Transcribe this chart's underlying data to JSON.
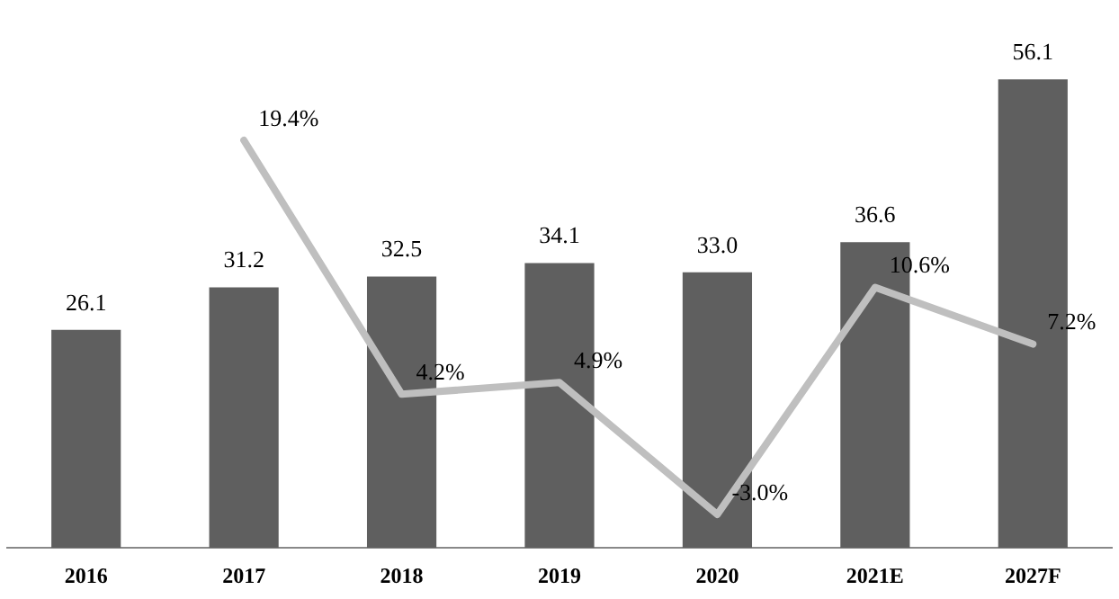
{
  "chart_data": {
    "type": "bar",
    "categories": [
      "2016",
      "2017",
      "2018",
      "2019",
      "2020",
      "2021E",
      "2027F"
    ],
    "grid": false,
    "legend": false,
    "tick_labels": "x",
    "series": [
      {
        "color": "#5f5f5f",
        "values": [
          26.1,
          31.2,
          32.5,
          34.1,
          33.0,
          36.6,
          56.1
        ],
        "value_labels": [
          "26.1",
          "31.2",
          "32.5",
          "34.1",
          "33.0",
          "36.6",
          "56.1"
        ]
      },
      {
        "type": "line",
        "axis": "y2",
        "color": "#bfbfbf",
        "marker": "none",
        "line_style": "solid",
        "values": [
          null,
          19.4,
          4.2,
          4.9,
          -3.0,
          10.6,
          7.2
        ],
        "value_labels": [
          null,
          "19.4%",
          "4.2%",
          "4.9%",
          "-3.0%",
          "10.6%",
          "7.2%"
        ]
      }
    ]
  }
}
